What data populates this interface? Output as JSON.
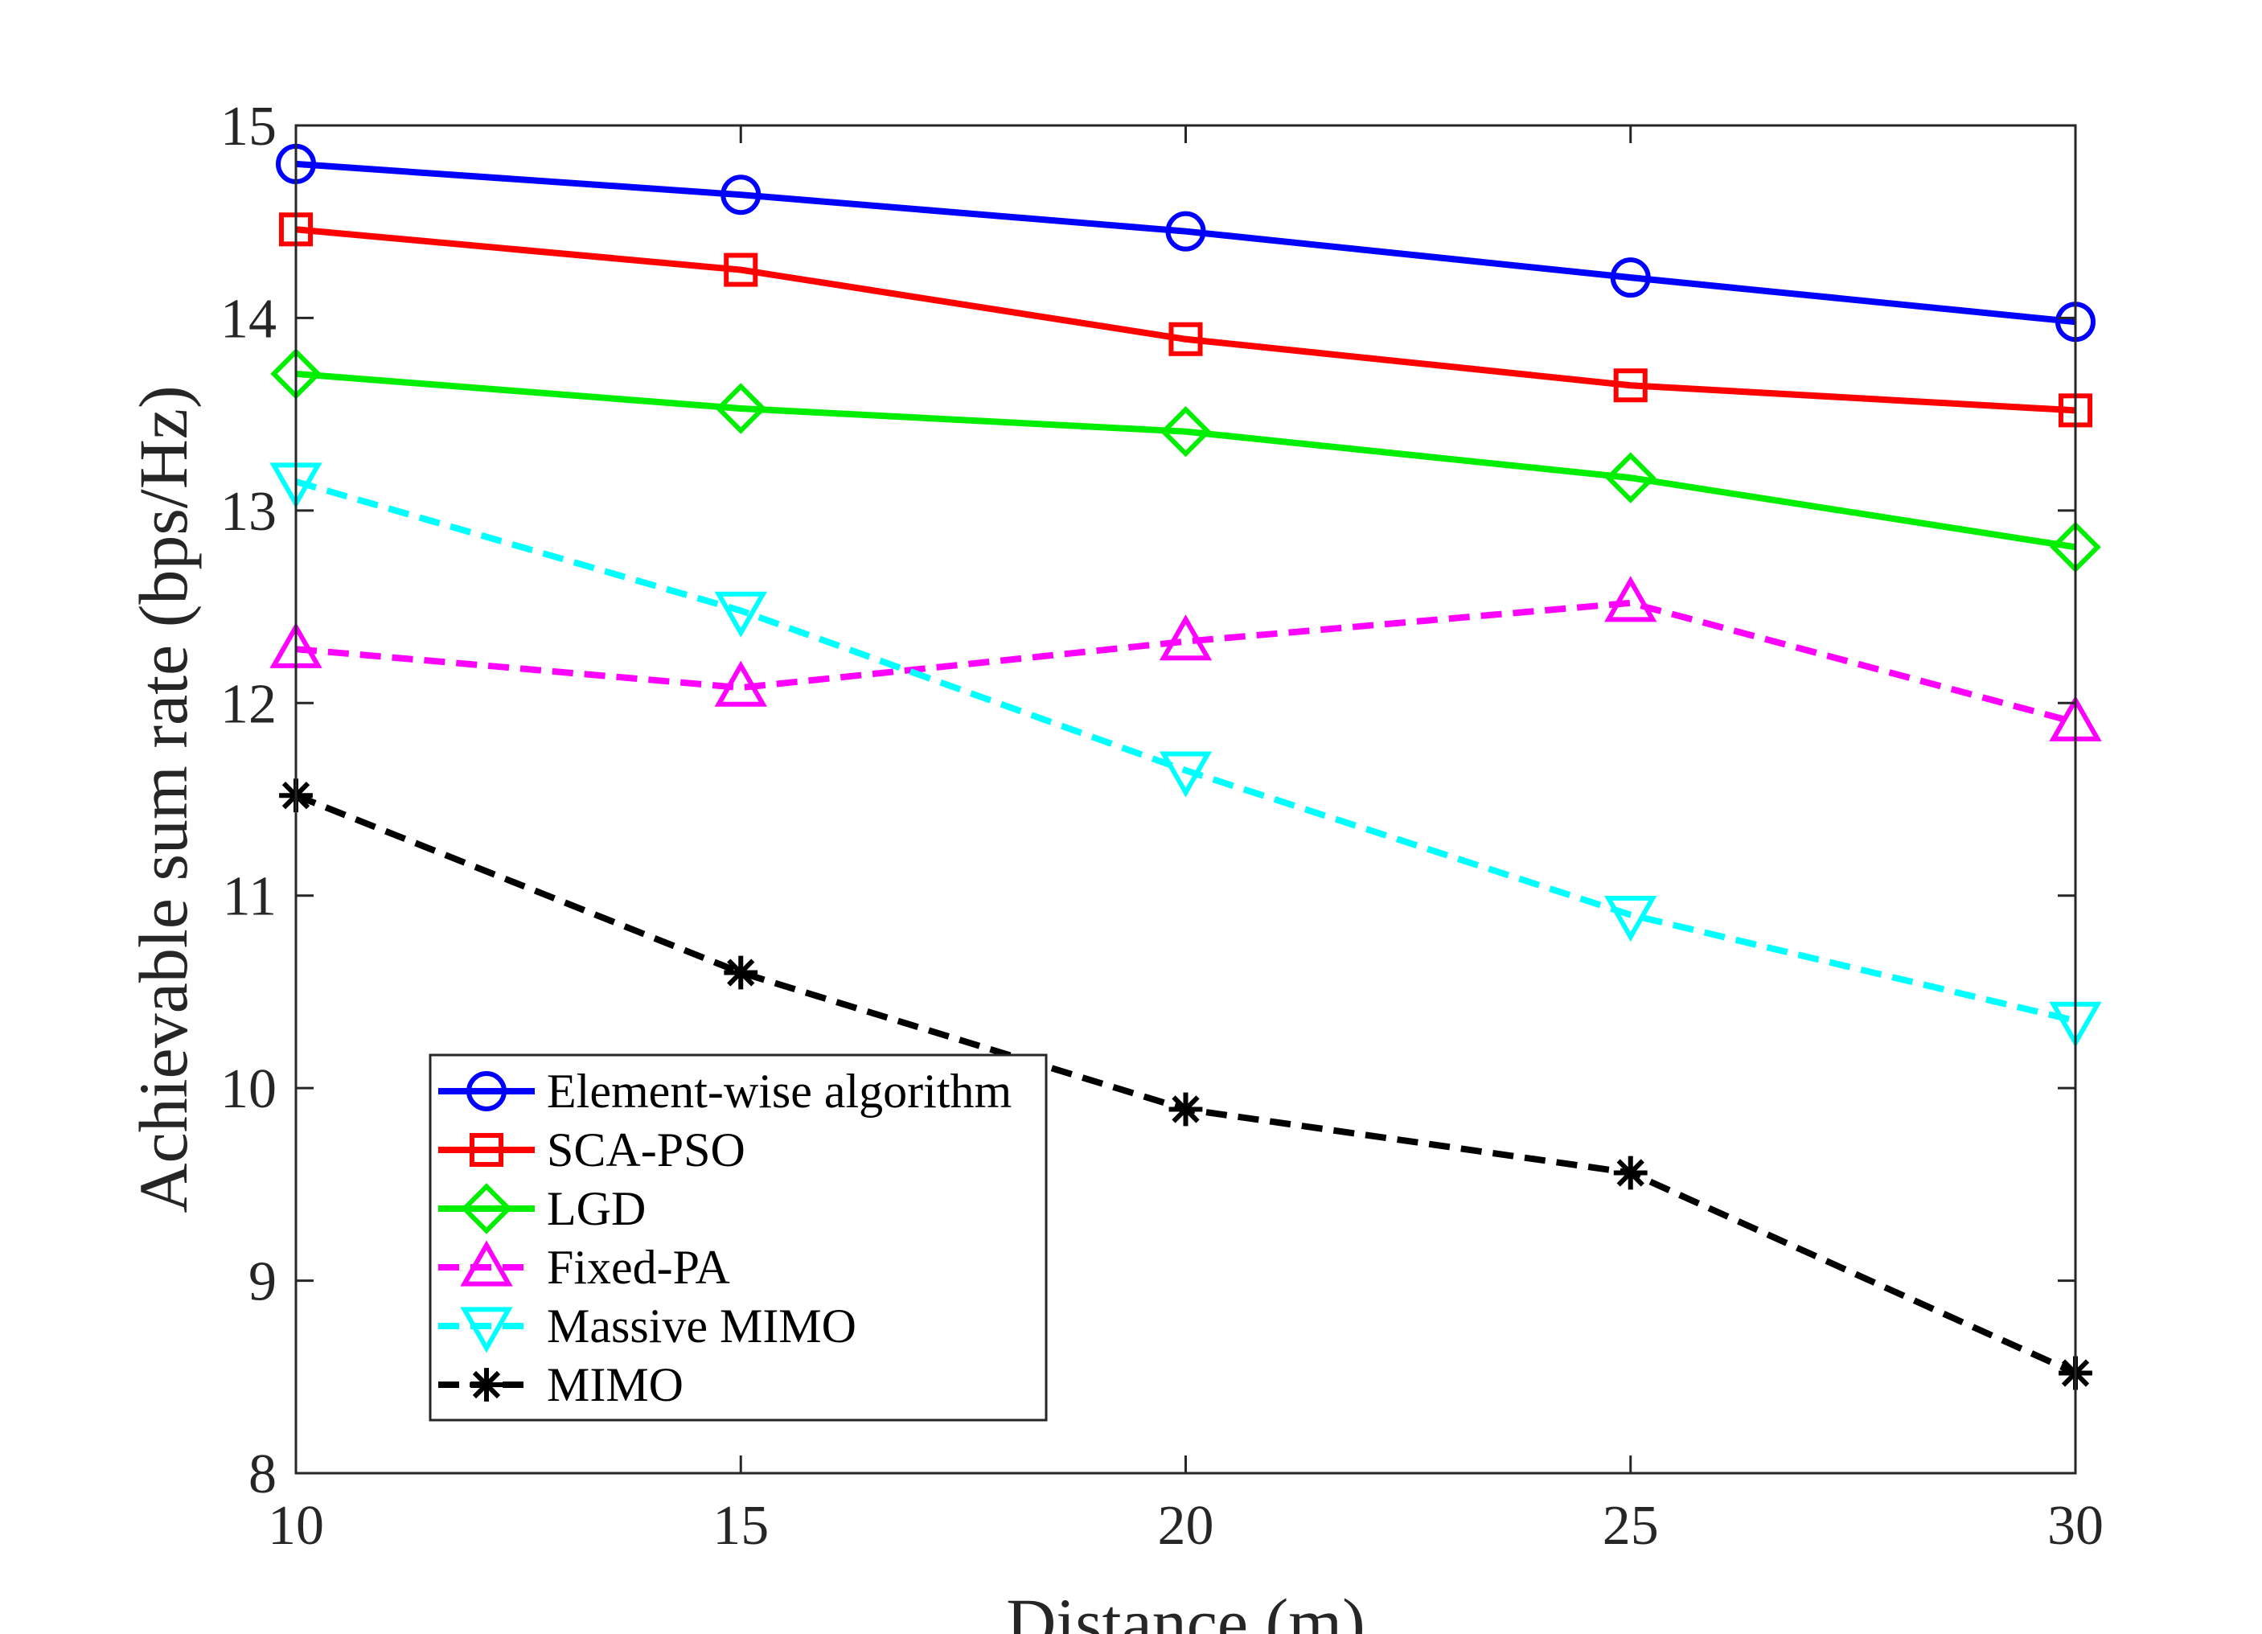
{
  "chart_data": {
    "type": "line",
    "title": "",
    "xlabel": "Distance (m)",
    "ylabel": "Achievable sum rate (bps/Hz)",
    "xlim": [
      10,
      30
    ],
    "ylim": [
      8,
      15
    ],
    "xticks": [
      10,
      15,
      20,
      25,
      30
    ],
    "yticks": [
      8,
      9,
      10,
      11,
      12,
      13,
      14,
      15
    ],
    "grid": false,
    "legend_position": "bottom-left",
    "x": [
      10,
      15,
      20,
      25,
      30
    ],
    "series": [
      {
        "name": "Element-wise algorithm",
        "values": [
          14.8,
          14.64,
          14.45,
          14.21,
          13.98
        ],
        "color": "#0000ff",
        "marker": "circle",
        "line_style": "solid"
      },
      {
        "name": "SCA-PSO",
        "values": [
          14.46,
          14.25,
          13.89,
          13.65,
          13.52
        ],
        "color": "#ff0000",
        "marker": "square",
        "line_style": "solid"
      },
      {
        "name": "LGD",
        "values": [
          13.71,
          13.53,
          13.41,
          13.17,
          12.81
        ],
        "color": "#00ee00",
        "marker": "diamond",
        "line_style": "solid"
      },
      {
        "name": "Fixed-PA",
        "values": [
          12.28,
          12.08,
          12.32,
          12.52,
          11.9
        ],
        "color": "#ff00ff",
        "marker": "triangle-up",
        "line_style": "dashed"
      },
      {
        "name": "Massive MIMO",
        "values": [
          13.15,
          12.48,
          11.65,
          10.9,
          10.35
        ],
        "color": "#00ffff",
        "marker": "triangle-down",
        "line_style": "dashed"
      },
      {
        "name": "MIMO",
        "values": [
          11.52,
          10.6,
          9.89,
          9.56,
          8.52
        ],
        "color": "#000000",
        "marker": "asterisk",
        "line_style": "dashed"
      }
    ]
  }
}
